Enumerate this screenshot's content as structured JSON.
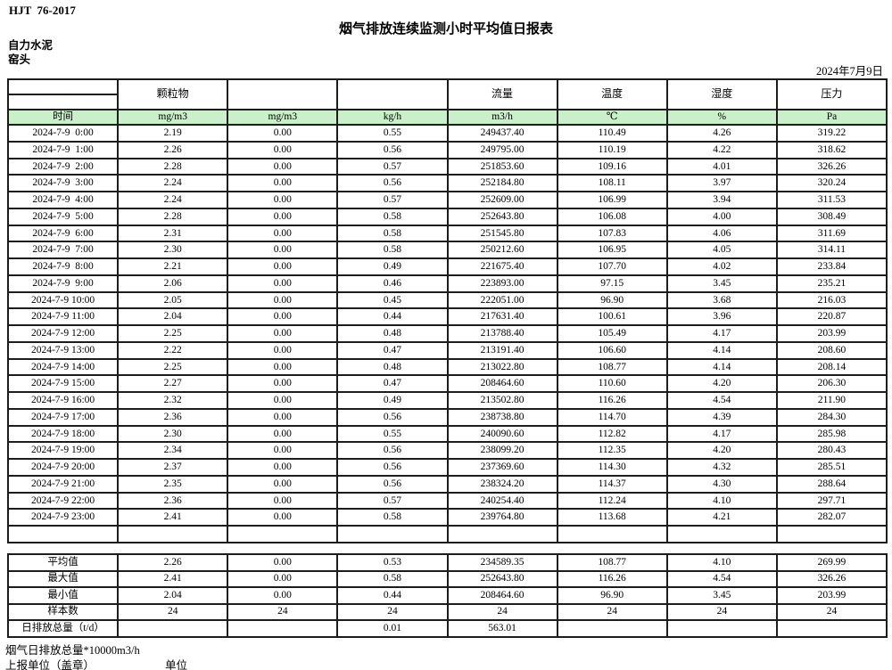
{
  "page": {
    "doc_code": "HJT  76-2017",
    "title": "烟气排放连续监测小时平均值日报表",
    "company": "自力水泥",
    "unit_name": "窑头",
    "date": "2024年7月9日"
  },
  "colors": {
    "header_green": "#c9f0c9",
    "border": "#1c1c1c"
  },
  "table": {
    "group_headers": {
      "particulate": "颗粒物",
      "flow": "流量",
      "temperature": "温度",
      "humidity": "湿度",
      "pressure": "压力"
    },
    "unit_row": [
      "时间",
      "mg/m3",
      "mg/m3",
      "kg/h",
      "m3/h",
      "℃",
      "%",
      "Pa"
    ],
    "rows": [
      [
        "2024-7-9  0:00",
        "2.19",
        "0.00",
        "0.55",
        "249437.40",
        "110.49",
        "4.26",
        "319.22"
      ],
      [
        "2024-7-9  1:00",
        "2.26",
        "0.00",
        "0.56",
        "249795.00",
        "110.19",
        "4.22",
        "318.62"
      ],
      [
        "2024-7-9  2:00",
        "2.28",
        "0.00",
        "0.57",
        "251853.60",
        "109.16",
        "4.01",
        "326.26"
      ],
      [
        "2024-7-9  3:00",
        "2.24",
        "0.00",
        "0.56",
        "252184.80",
        "108.11",
        "3.97",
        "320.24"
      ],
      [
        "2024-7-9  4:00",
        "2.24",
        "0.00",
        "0.57",
        "252609.00",
        "106.99",
        "3.94",
        "311.53"
      ],
      [
        "2024-7-9  5:00",
        "2.28",
        "0.00",
        "0.58",
        "252643.80",
        "106.08",
        "4.00",
        "308.49"
      ],
      [
        "2024-7-9  6:00",
        "2.31",
        "0.00",
        "0.58",
        "251545.80",
        "107.83",
        "4.06",
        "311.69"
      ],
      [
        "2024-7-9  7:00",
        "2.30",
        "0.00",
        "0.58",
        "250212.60",
        "106.95",
        "4.05",
        "314.11"
      ],
      [
        "2024-7-9  8:00",
        "2.21",
        "0.00",
        "0.49",
        "221675.40",
        "107.70",
        "4.02",
        "233.84"
      ],
      [
        "2024-7-9  9:00",
        "2.06",
        "0.00",
        "0.46",
        "223893.00",
        "97.15",
        "3.45",
        "235.21"
      ],
      [
        "2024-7-9 10:00",
        "2.05",
        "0.00",
        "0.45",
        "222051.00",
        "96.90",
        "3.68",
        "216.03"
      ],
      [
        "2024-7-9 11:00",
        "2.04",
        "0.00",
        "0.44",
        "217631.40",
        "100.61",
        "3.96",
        "220.87"
      ],
      [
        "2024-7-9 12:00",
        "2.25",
        "0.00",
        "0.48",
        "213788.40",
        "105.49",
        "4.17",
        "203.99"
      ],
      [
        "2024-7-9 13:00",
        "2.22",
        "0.00",
        "0.47",
        "213191.40",
        "106.60",
        "4.14",
        "208.60"
      ],
      [
        "2024-7-9 14:00",
        "2.25",
        "0.00",
        "0.48",
        "213022.80",
        "108.77",
        "4.14",
        "208.14"
      ],
      [
        "2024-7-9 15:00",
        "2.27",
        "0.00",
        "0.47",
        "208464.60",
        "110.60",
        "4.20",
        "206.30"
      ],
      [
        "2024-7-9 16:00",
        "2.32",
        "0.00",
        "0.49",
        "213502.80",
        "116.26",
        "4.54",
        "211.90"
      ],
      [
        "2024-7-9 17:00",
        "2.36",
        "0.00",
        "0.56",
        "238738.80",
        "114.70",
        "4.39",
        "284.30"
      ],
      [
        "2024-7-9 18:00",
        "2.30",
        "0.00",
        "0.55",
        "240090.60",
        "112.82",
        "4.17",
        "285.98"
      ],
      [
        "2024-7-9 19:00",
        "2.34",
        "0.00",
        "0.56",
        "238099.20",
        "112.35",
        "4.20",
        "280.43"
      ],
      [
        "2024-7-9 20:00",
        "2.37",
        "0.00",
        "0.56",
        "237369.60",
        "114.30",
        "4.32",
        "285.51"
      ],
      [
        "2024-7-9 21:00",
        "2.35",
        "0.00",
        "0.56",
        "238324.20",
        "114.37",
        "4.30",
        "288.64"
      ],
      [
        "2024-7-9 22:00",
        "2.36",
        "0.00",
        "0.57",
        "240254.40",
        "112.24",
        "4.10",
        "297.71"
      ],
      [
        "2024-7-9 23:00",
        "2.41",
        "0.00",
        "0.58",
        "239764.80",
        "113.68",
        "4.21",
        "282.07"
      ],
      [
        "",
        "",
        "",
        "",
        "",
        "",
        "",
        ""
      ]
    ],
    "summary_rows": [
      [
        "平均值",
        "2.26",
        "0.00",
        "0.53",
        "234589.35",
        "108.77",
        "4.10",
        "269.99"
      ],
      [
        "最大值",
        "2.41",
        "0.00",
        "0.58",
        "252643.80",
        "116.26",
        "4.54",
        "326.26"
      ],
      [
        "最小值",
        "2.04",
        "0.00",
        "0.44",
        "208464.60",
        "96.90",
        "3.45",
        "203.99"
      ],
      [
        "样本数",
        "24",
        "24",
        "24",
        "24",
        "24",
        "24",
        "24"
      ],
      [
        "日排放总量（t/d）",
        "",
        "",
        "0.01",
        "563.01",
        "",
        "",
        ""
      ]
    ]
  },
  "footer": {
    "note": "烟气日排放总量*10000m3/h",
    "report_unit_label": "上报单位（盖章）",
    "unit_label": "单位"
  }
}
